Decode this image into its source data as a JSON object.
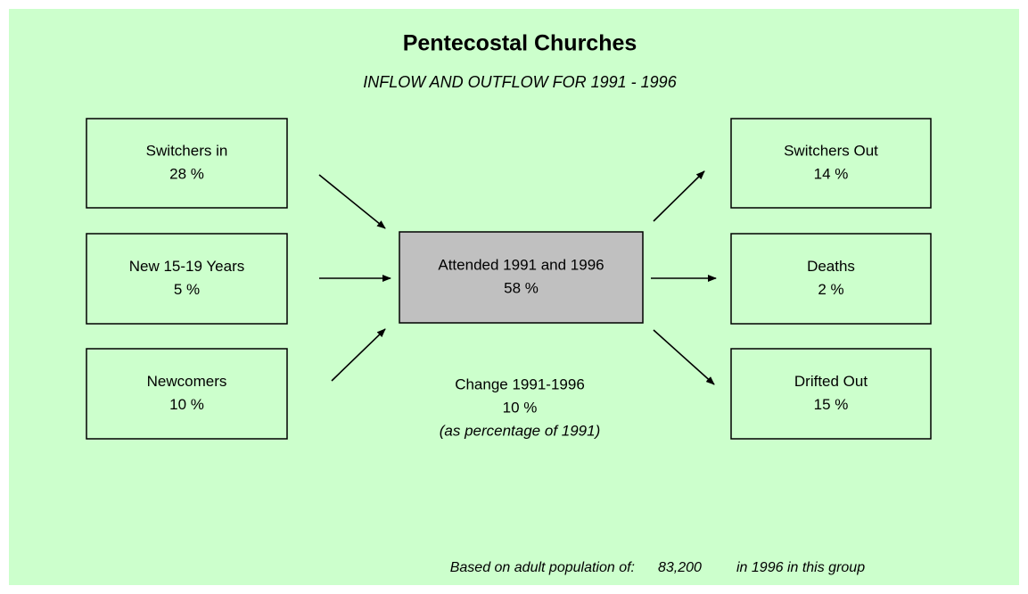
{
  "title": "Pentecostal Churches",
  "subtitle": "INFLOW AND OUTFLOW FOR 1991 - 1996",
  "nodes": [
    {
      "label": "Switchers in",
      "value": "28 %"
    },
    {
      "label": "New 15-19 Years",
      "value": "5 %"
    },
    {
      "label": "Newcomers",
      "value": "10 %"
    },
    {
      "label": "Attended 1991 and 1996",
      "value": "58 %"
    },
    {
      "label": "Switchers Out",
      "value": "14 %"
    },
    {
      "label": "Deaths",
      "value": "2 %"
    },
    {
      "label": "Drifted Out",
      "value": "15 %"
    }
  ],
  "change": {
    "label": "Change 1991-1996",
    "value": "10 %",
    "note": "(as percentage of 1991)"
  },
  "footer": {
    "prefix": "Based on adult population of:",
    "population": "83,200",
    "suffix": "in 1996 in this group"
  }
}
